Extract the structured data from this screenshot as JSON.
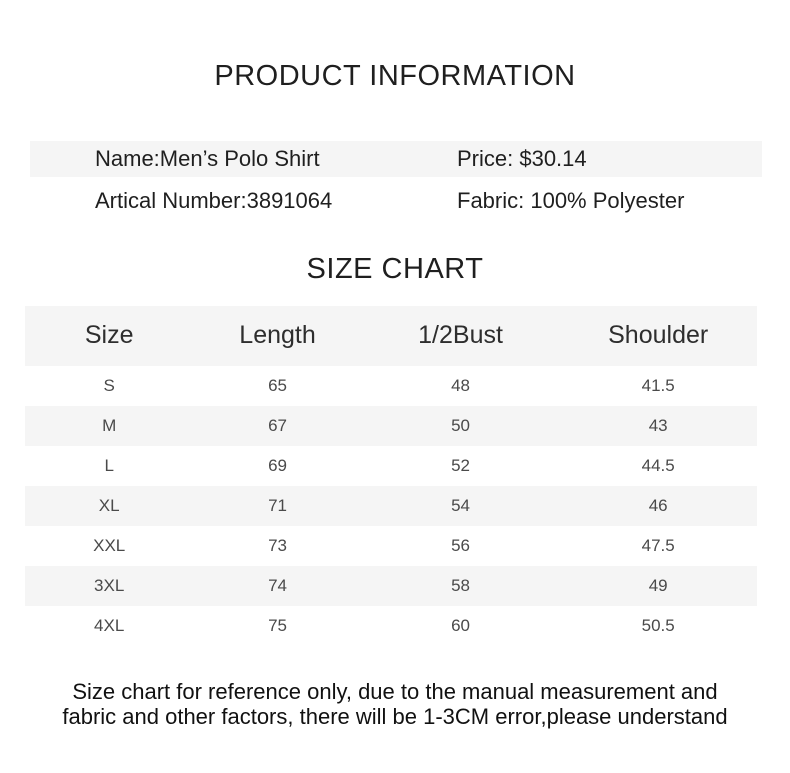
{
  "headings": {
    "main": "PRODUCT INFORMATION",
    "size_chart": "SIZE CHART"
  },
  "product": {
    "name": "Name:Men’s Polo Shirt",
    "artical_number": "Artical Number:3891064",
    "price": "Price: $30.14",
    "fabric": "Fabric: 100% Polyester"
  },
  "chart_data": {
    "type": "table",
    "title": "SIZE CHART",
    "columns": [
      "Size",
      "Length",
      "1/2Bust",
      "Shoulder"
    ],
    "rows": [
      [
        "S",
        65,
        48,
        41.5
      ],
      [
        "M",
        67,
        50,
        43
      ],
      [
        "L",
        69,
        52,
        44.5
      ],
      [
        "XL",
        71,
        54,
        46
      ],
      [
        "XXL",
        73,
        56,
        47.5
      ],
      [
        "3XL",
        74,
        58,
        49
      ],
      [
        "4XL",
        75,
        60,
        50.5
      ]
    ]
  },
  "footer": {
    "line1": "Size chart for reference only, due to the manual measurement and",
    "line2": "fabric and other factors, there will be 1-3CM error,please understand"
  },
  "colors": {
    "stripe": "#f5f5f5",
    "background": "#ffffff",
    "text": "#1f1f1f"
  }
}
